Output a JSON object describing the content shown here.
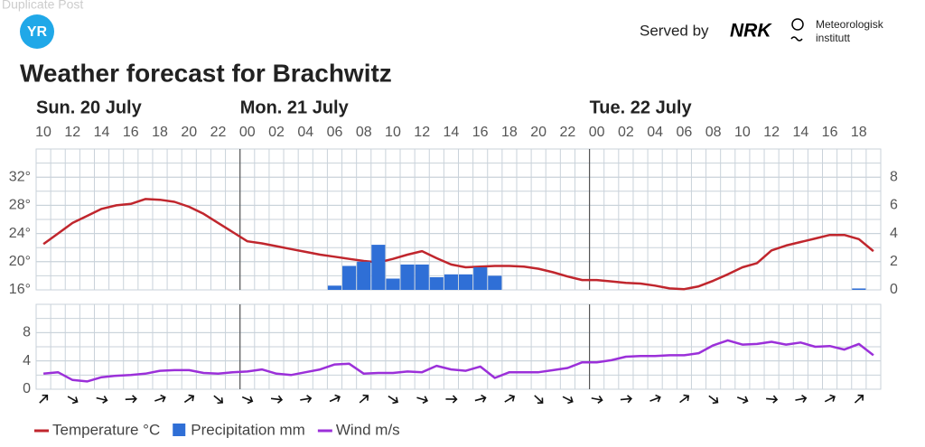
{
  "header": {
    "overlay": "Duplicate Post",
    "logo": "YR",
    "served_by": "Served by",
    "nrk": "NRK",
    "met_line1": "Meteorologisk",
    "met_line2": "institutt"
  },
  "chart_data": [
    {
      "type": "line",
      "title": "Weather forecast for Brachwitz",
      "days": [
        "Sun. 20 July",
        "Mon. 21 July",
        "Tue. 22 July"
      ],
      "categories": [
        "10",
        null,
        "12",
        null,
        "14",
        null,
        "16",
        null,
        "18",
        null,
        "20",
        null,
        "22",
        null,
        "00",
        null,
        "02",
        null,
        "04",
        null,
        "06",
        null,
        "08",
        null,
        "10",
        null,
        "12",
        null,
        "14",
        null,
        "16",
        null,
        "18",
        null,
        "20",
        null,
        "22",
        null,
        "00",
        null,
        "02",
        null,
        "04",
        null,
        "06",
        null,
        "08",
        null,
        "10",
        null,
        "12",
        null,
        "14",
        null,
        "16",
        null,
        "18",
        null
      ],
      "series": [
        {
          "name": "Temperature °C",
          "type": "line",
          "color": "#c0262d",
          "values": [
            22.5,
            24,
            25.5,
            26.5,
            27.5,
            28,
            28.2,
            28.9,
            28.8,
            28.5,
            27.8,
            26.8,
            25.5,
            24.2,
            22.9,
            22.6,
            22.2,
            21.8,
            21.4,
            21,
            20.7,
            20.4,
            20.1,
            19.9,
            20.4,
            21,
            21.5,
            20.5,
            19.6,
            19.2,
            19.3,
            19.4,
            19.4,
            19.3,
            19,
            18.5,
            17.9,
            17.4,
            17.4,
            17.2,
            17,
            16.9,
            16.6,
            16.2,
            16.1,
            16.5,
            17.3,
            18.2,
            19.2,
            19.8,
            21.6,
            22.3,
            22.8,
            23.3,
            23.8,
            23.8,
            23.2,
            21.5
          ]
        },
        {
          "name": "Precipitation mm",
          "type": "bar",
          "axis": "y2",
          "color": "#2f6fd6",
          "values": [
            0,
            0,
            0,
            0,
            0,
            0,
            0,
            0,
            0,
            0,
            0,
            0,
            0,
            0,
            0,
            0,
            0,
            0,
            0,
            0,
            0.3,
            1.7,
            2,
            3.2,
            0.8,
            1.8,
            1.8,
            0.9,
            1.1,
            1.1,
            1.6,
            1,
            0,
            0,
            0,
            0,
            0,
            0,
            0,
            0,
            0,
            0,
            0,
            0,
            0,
            0,
            0,
            0,
            0,
            0,
            0,
            0,
            0,
            0,
            0,
            0,
            0.1,
            0
          ]
        }
      ],
      "ylim": [
        16,
        36
      ],
      "yticks": [
        {
          "value": 16,
          "label": "16°"
        },
        {
          "value": 20,
          "label": "20°"
        },
        {
          "value": 24,
          "label": "24°"
        },
        {
          "value": 28,
          "label": "28°"
        },
        {
          "value": 32,
          "label": "32°"
        }
      ],
      "y2lim": [
        0,
        10
      ],
      "y2ticks": [
        0,
        2,
        4,
        6,
        8
      ],
      "grid": true
    },
    {
      "type": "line",
      "series": [
        {
          "name": "Wind m/s",
          "type": "line",
          "color": "#9b30d9",
          "values": [
            2.2,
            2.4,
            1.3,
            1.1,
            1.7,
            1.9,
            2,
            2.2,
            2.6,
            2.7,
            2.7,
            2.3,
            2.2,
            2.4,
            2.5,
            2.8,
            2.2,
            2,
            2.4,
            2.8,
            3.5,
            3.6,
            2.2,
            2.3,
            2.3,
            2.5,
            2.4,
            3.3,
            2.8,
            2.6,
            3.2,
            1.6,
            2.4,
            2.4,
            2.4,
            2.7,
            3,
            3.8,
            3.8,
            4.1,
            4.6,
            4.7,
            4.7,
            4.8,
            4.8,
            5.1,
            6.2,
            6.9,
            6.3,
            6.4,
            6.7,
            6.3,
            6.6,
            6,
            6.1,
            5.6,
            6.4,
            4.8
          ]
        }
      ],
      "ylim": [
        0,
        12
      ],
      "yticks": [
        0,
        4,
        8
      ],
      "grid": true
    }
  ]
}
